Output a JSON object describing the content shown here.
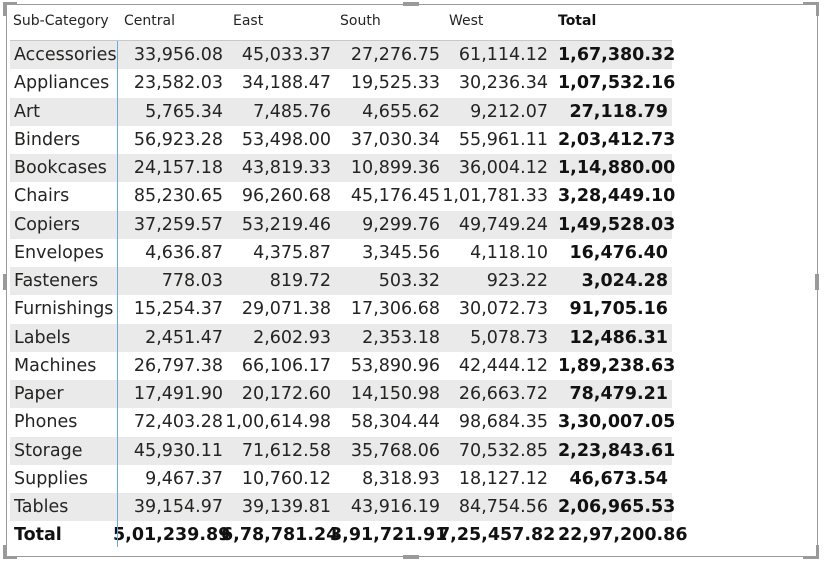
{
  "matrix": {
    "headers": [
      "Sub-Category",
      "Central",
      "East",
      "South",
      "West",
      "Total"
    ],
    "rows": [
      {
        "label": "Accessories",
        "values": [
          "33,956.08",
          "45,033.37",
          "27,276.75",
          "61,114.12",
          "1,67,380.32"
        ]
      },
      {
        "label": "Appliances",
        "values": [
          "23,582.03",
          "34,188.47",
          "19,525.33",
          "30,236.34",
          "1,07,532.16"
        ]
      },
      {
        "label": "Art",
        "values": [
          "5,765.34",
          "7,485.76",
          "4,655.62",
          "9,212.07",
          "27,118.79"
        ]
      },
      {
        "label": "Binders",
        "values": [
          "56,923.28",
          "53,498.00",
          "37,030.34",
          "55,961.11",
          "2,03,412.73"
        ]
      },
      {
        "label": "Bookcases",
        "values": [
          "24,157.18",
          "43,819.33",
          "10,899.36",
          "36,004.12",
          "1,14,880.00"
        ]
      },
      {
        "label": "Chairs",
        "values": [
          "85,230.65",
          "96,260.68",
          "45,176.45",
          "1,01,781.33",
          "3,28,449.10"
        ]
      },
      {
        "label": "Copiers",
        "values": [
          "37,259.57",
          "53,219.46",
          "9,299.76",
          "49,749.24",
          "1,49,528.03"
        ]
      },
      {
        "label": "Envelopes",
        "values": [
          "4,636.87",
          "4,375.87",
          "3,345.56",
          "4,118.10",
          "16,476.40"
        ]
      },
      {
        "label": "Fasteners",
        "values": [
          "778.03",
          "819.72",
          "503.32",
          "923.22",
          "3,024.28"
        ]
      },
      {
        "label": "Furnishings",
        "values": [
          "15,254.37",
          "29,071.38",
          "17,306.68",
          "30,072.73",
          "91,705.16"
        ]
      },
      {
        "label": "Labels",
        "values": [
          "2,451.47",
          "2,602.93",
          "2,353.18",
          "5,078.73",
          "12,486.31"
        ]
      },
      {
        "label": "Machines",
        "values": [
          "26,797.38",
          "66,106.17",
          "53,890.96",
          "42,444.12",
          "1,89,238.63"
        ]
      },
      {
        "label": "Paper",
        "values": [
          "17,491.90",
          "20,172.60",
          "14,150.98",
          "26,663.72",
          "78,479.21"
        ]
      },
      {
        "label": "Phones",
        "values": [
          "72,403.28",
          "1,00,614.98",
          "58,304.44",
          "98,684.35",
          "3,30,007.05"
        ]
      },
      {
        "label": "Storage",
        "values": [
          "45,930.11",
          "71,612.58",
          "35,768.06",
          "70,532.85",
          "2,23,843.61"
        ]
      },
      {
        "label": "Supplies",
        "values": [
          "9,467.37",
          "10,760.12",
          "8,318.93",
          "18,127.12",
          "46,673.54"
        ]
      },
      {
        "label": "Tables",
        "values": [
          "39,154.97",
          "39,139.81",
          "43,916.19",
          "84,754.56",
          "2,06,965.53"
        ]
      }
    ],
    "total": {
      "label": "Total",
      "values": [
        "5,01,239.89",
        "6,78,781.24",
        "3,91,721.91",
        "7,25,457.82",
        "22,97,200.86"
      ]
    }
  },
  "colors": {
    "alt_row": "#eaeaea",
    "divider": "#6aa8e0",
    "frame": "#9a9a9a"
  }
}
